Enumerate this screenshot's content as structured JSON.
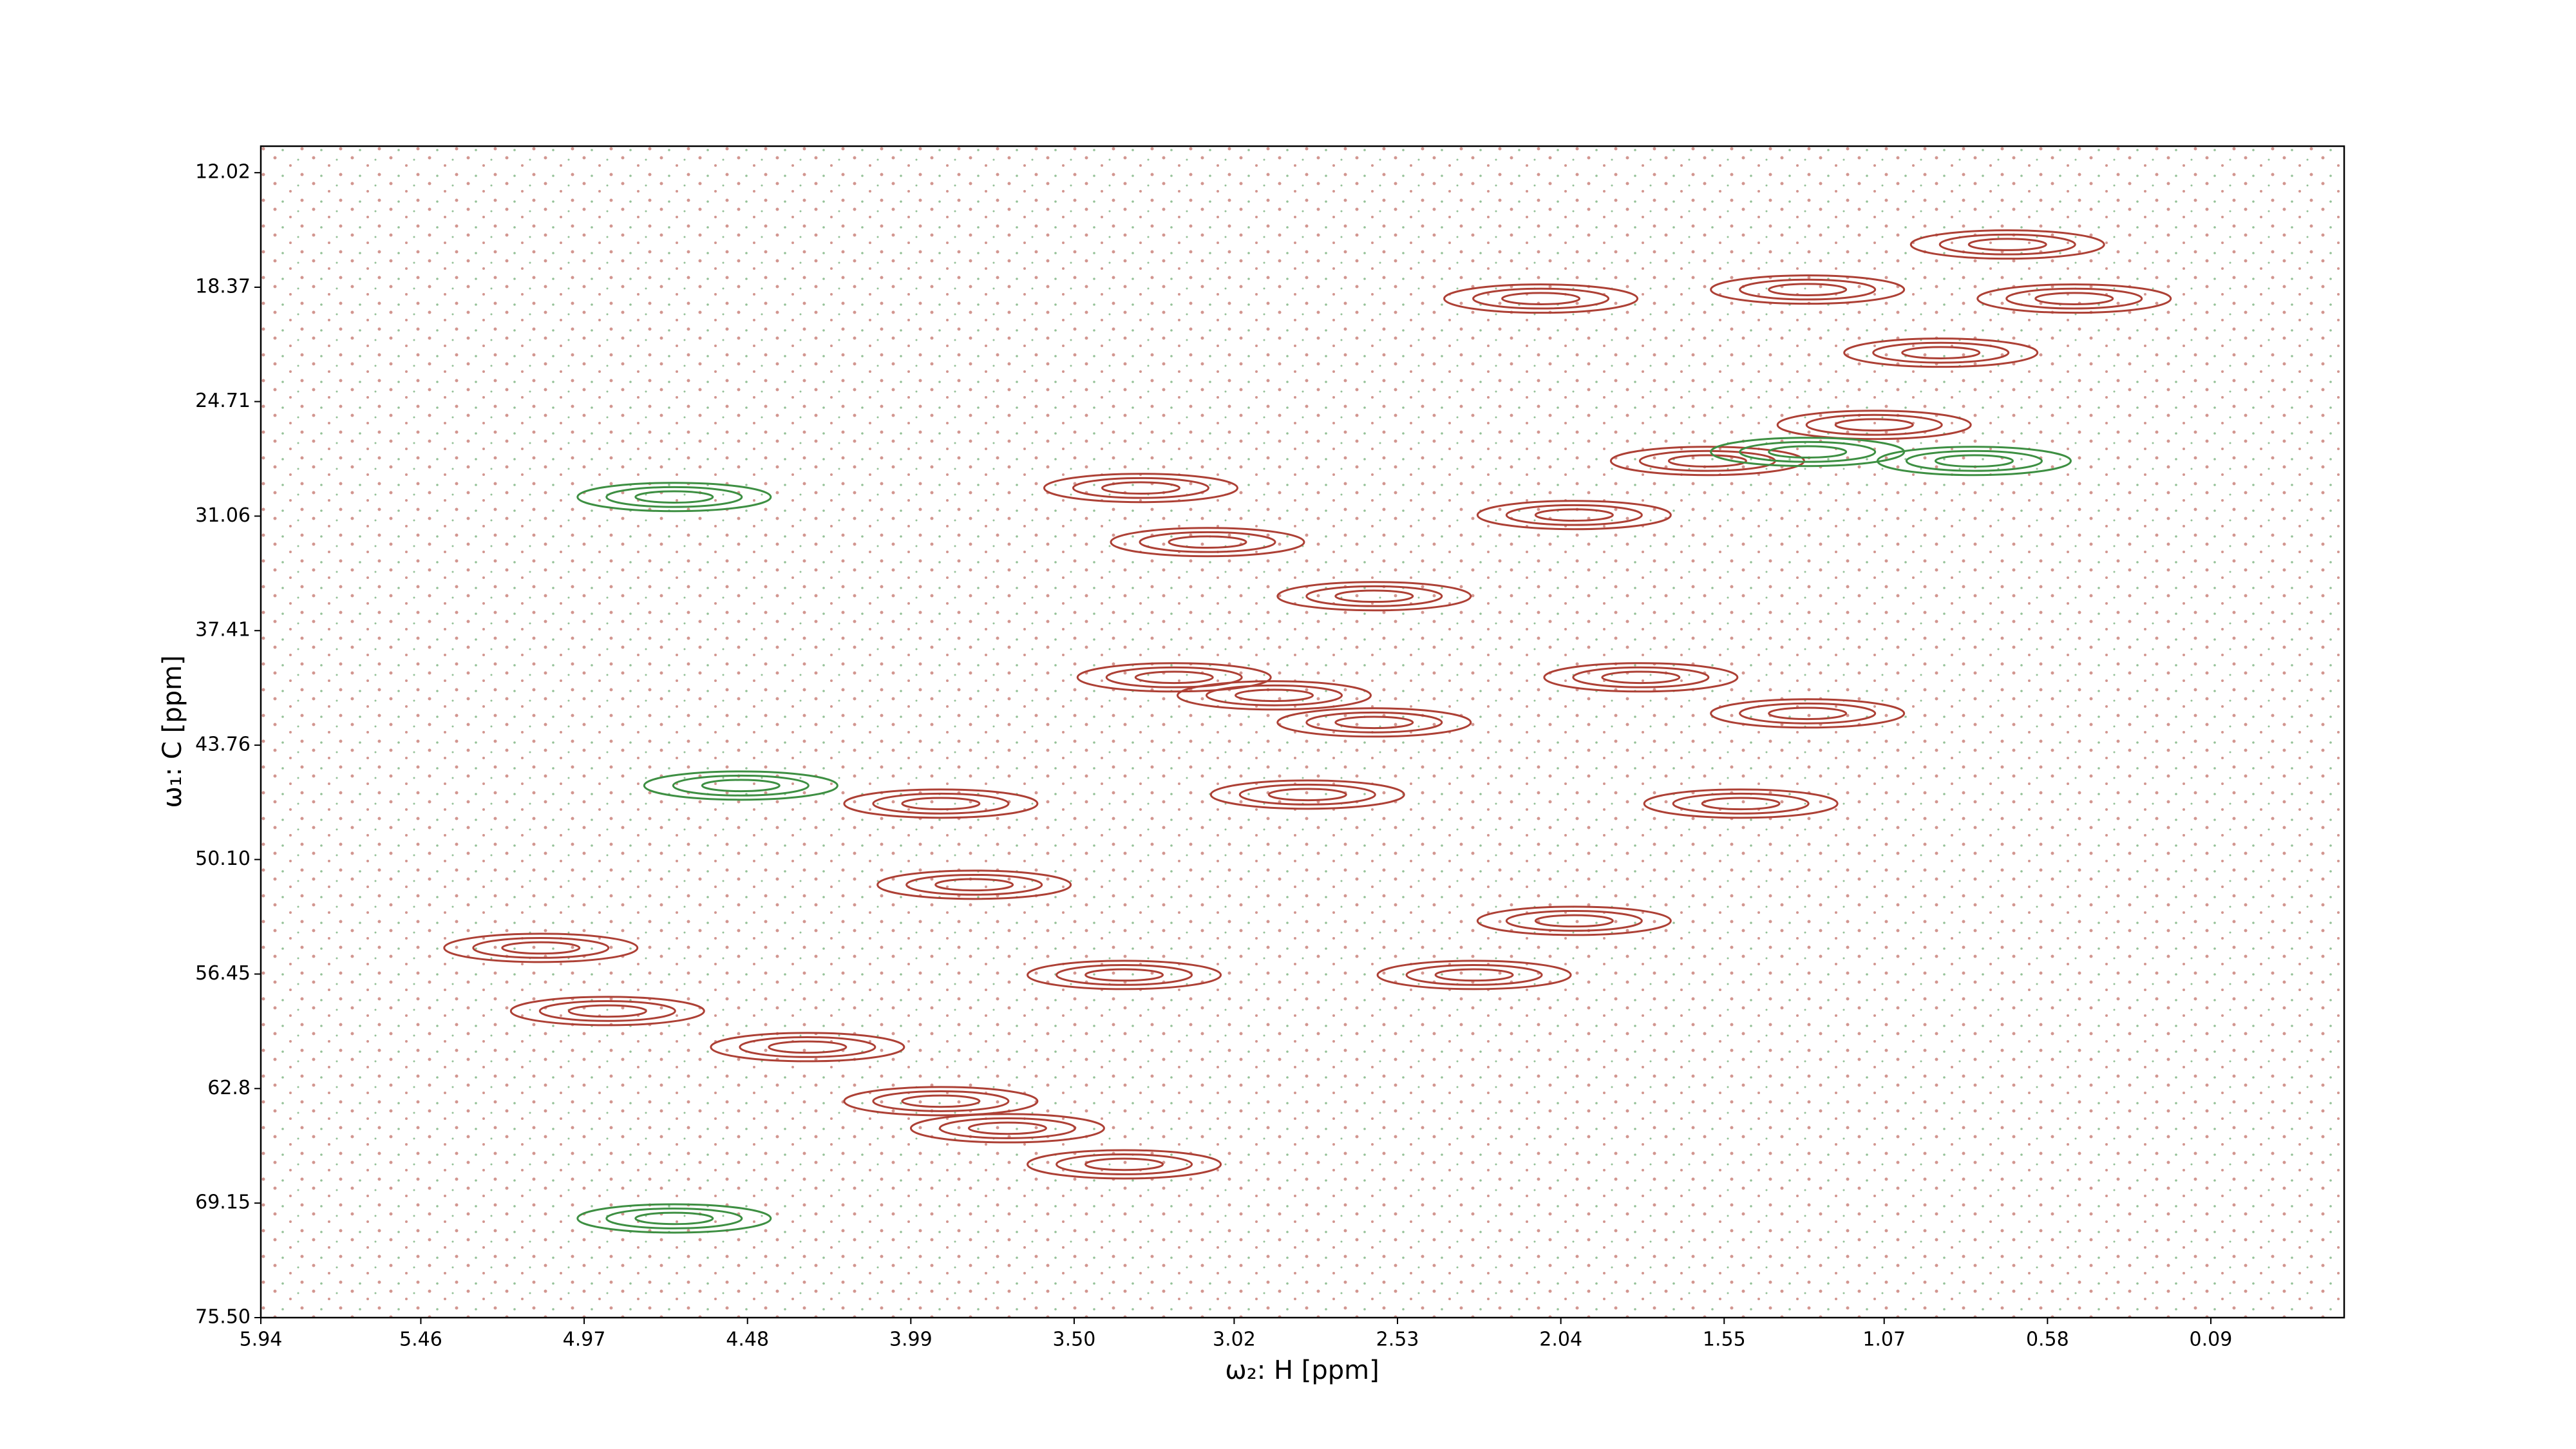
{
  "chart_data": {
    "type": "contour",
    "xlabel": "ω₂: H [ppm]",
    "ylabel": "ω₁: C [ppm]",
    "xlim": [
      5.94,
      -0.31
    ],
    "ylim": [
      75.5,
      10.55
    ],
    "xticks": [
      5.94,
      5.46,
      4.97,
      4.48,
      3.99,
      {
        "value": 3.5,
        "label": "3.50"
      },
      3.02,
      2.53,
      2.04,
      1.55,
      1.07,
      0.58,
      0.09
    ],
    "yticks": [
      12.02,
      18.37,
      24.71,
      31.06,
      37.41,
      43.76,
      {
        "value": 50.1,
        "label": "50.10"
      },
      56.45,
      62.8,
      69.15,
      {
        "value": 75.5,
        "label": "75.50"
      }
    ],
    "series": [
      {
        "name": "positive",
        "color": "#ad4035",
        "x": [
          5.1,
          4.9,
          4.3,
          3.9,
          3.7,
          3.35,
          3.3,
          3.1,
          2.6,
          2.0,
          1.6,
          1.1,
          0.9,
          0.7,
          0.5,
          1.3,
          2.1,
          2.9,
          2.6,
          3.2,
          1.3,
          1.5,
          2.3,
          3.35,
          3.9,
          3.8,
          2.8,
          2.0,
          1.8
        ],
        "values": [
          55,
          58.5,
          60.5,
          63.5,
          65,
          67,
          29.5,
          32.5,
          35.5,
          31,
          28,
          26,
          22,
          16,
          19,
          18.5,
          19,
          41,
          42.5,
          40,
          42,
          47,
          56.5,
          56.5,
          47,
          51.5,
          46.5,
          53.5,
          40
        ]
      },
      {
        "name": "negative",
        "color": "#3d8f42",
        "x": [
          4.5,
          4.7,
          4.7,
          1.3,
          0.8
        ],
        "values": [
          46,
          30,
          70,
          27.5,
          28
        ]
      }
    ]
  }
}
